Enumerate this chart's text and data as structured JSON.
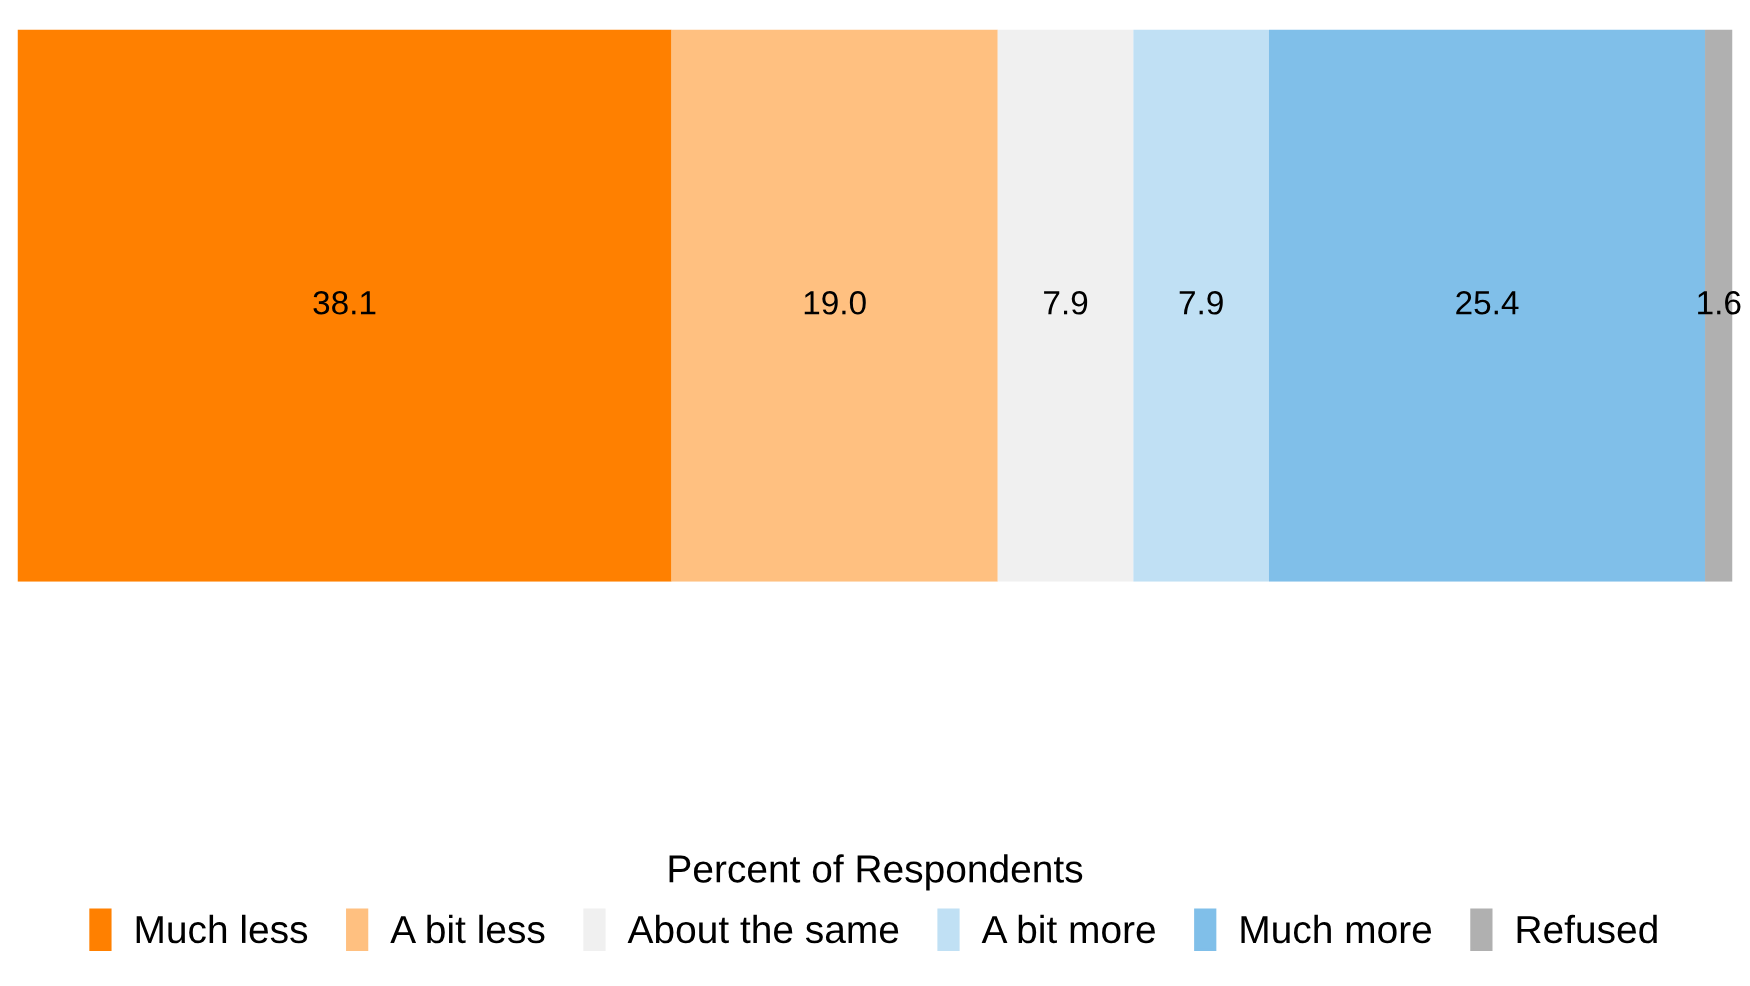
{
  "chart_data": {
    "type": "bar",
    "orientation": "horizontal",
    "stacked": true,
    "categories": [
      null
    ],
    "legend_title": "Percent of Respondents",
    "legend": "bottom",
    "series": [
      {
        "name": "Much less",
        "color": "#ff8000",
        "values": [
          38.1
        ],
        "value_labels": [
          "38.1"
        ]
      },
      {
        "name": "A bit less",
        "color": "#ffc080",
        "values": [
          19.0
        ],
        "value_labels": [
          "19.0"
        ]
      },
      {
        "name": "About the same",
        "color": "#f0f0f0",
        "values": [
          7.9
        ],
        "value_labels": [
          "7.9"
        ]
      },
      {
        "name": "A bit more",
        "color": "#c0e0f4",
        "values": [
          7.9
        ],
        "value_labels": [
          "7.9"
        ]
      },
      {
        "name": "Much more",
        "color": "#80bfe9",
        "values": [
          25.4
        ],
        "value_labels": [
          "25.4"
        ]
      },
      {
        "name": "Refused",
        "color": "#b0b0b0",
        "values": [
          1.6
        ],
        "value_labels": [
          "1.6"
        ]
      }
    ]
  }
}
